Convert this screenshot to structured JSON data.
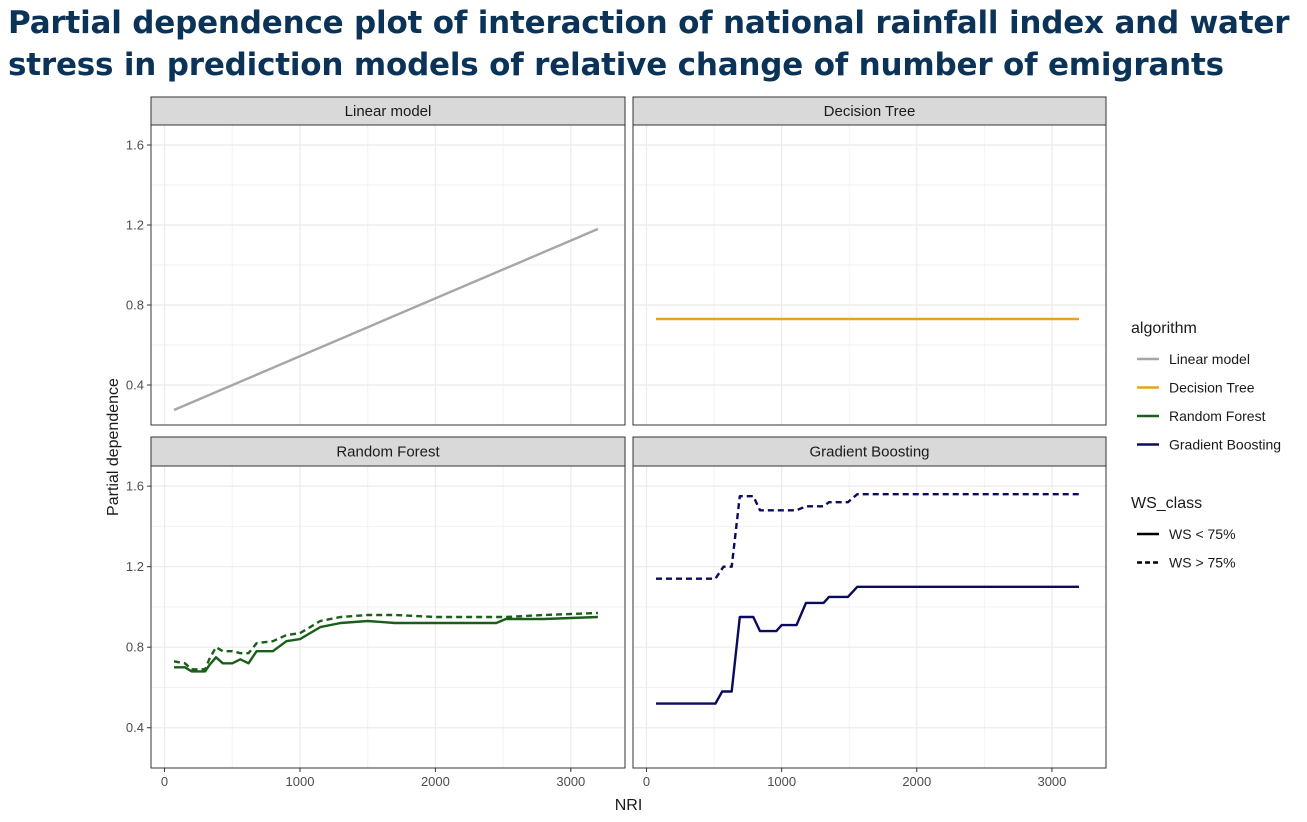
{
  "title": "Partial dependence plot of interaction of national rainfall index and water stress in prediction models of relative change of number of emigrants",
  "chart_data": {
    "type": "line",
    "xlabel": "NRI",
    "ylabel": "Partial dependence",
    "xlim": [
      -100,
      3400
    ],
    "ylim": [
      0.2,
      1.7
    ],
    "x_ticks": [
      0,
      1000,
      2000,
      3000
    ],
    "x_tick_labels": [
      "0",
      "1000",
      "2000",
      "3000"
    ],
    "y_ticks": [
      0.4,
      0.8,
      1.2,
      1.6
    ],
    "y_tick_labels": [
      "0.4",
      "0.8",
      "1.2",
      "1.6"
    ],
    "grid": true,
    "legend_placement": "right",
    "legends": [
      {
        "title": "algorithm",
        "entries": [
          {
            "label": "Linear model",
            "color": "#a6a6a6",
            "dash": "solid"
          },
          {
            "label": "Decision Tree",
            "color": "#e8a318",
            "dash": "solid"
          },
          {
            "label": "Random Forest",
            "color": "#1a5e1a",
            "dash": "solid"
          },
          {
            "label": "Gradient Boosting",
            "color": "#0b0b5e",
            "dash": "solid"
          }
        ]
      },
      {
        "title": "WS_class",
        "entries": [
          {
            "label": "WS < 75%",
            "color": "#000000",
            "dash": "solid"
          },
          {
            "label": "WS > 75%",
            "color": "#000000",
            "dash": "dashed"
          }
        ]
      }
    ],
    "panels": [
      {
        "name": "Linear model",
        "color": "#a6a6a6",
        "series": [
          {
            "ws_class": "WS < 75%",
            "dash": "solid",
            "x": [
              70,
              3200
            ],
            "y": [
              0.275,
              1.18
            ]
          }
        ]
      },
      {
        "name": "Decision Tree",
        "color": "#e8a318",
        "series": [
          {
            "ws_class": "WS < 75%",
            "dash": "solid",
            "x": [
              70,
              3200
            ],
            "y": [
              0.73,
              0.73
            ]
          }
        ]
      },
      {
        "name": "Random Forest",
        "color": "#1a5e1a",
        "series": [
          {
            "ws_class": "WS < 75%",
            "dash": "solid",
            "x": [
              70,
              150,
              200,
              300,
              330,
              380,
              430,
              500,
              560,
              620,
              680,
              800,
              900,
              1000,
              1150,
              1300,
              1500,
              1700,
              2000,
              2300,
              2450,
              2520,
              2800,
              3200
            ],
            "y": [
              0.7,
              0.7,
              0.68,
              0.68,
              0.71,
              0.75,
              0.72,
              0.72,
              0.74,
              0.72,
              0.78,
              0.78,
              0.83,
              0.84,
              0.9,
              0.92,
              0.93,
              0.92,
              0.92,
              0.92,
              0.92,
              0.94,
              0.94,
              0.95
            ]
          },
          {
            "ws_class": "WS > 75%",
            "dash": "dashed",
            "x": [
              70,
              150,
              200,
              300,
              330,
              380,
              430,
              500,
              560,
              620,
              680,
              800,
              900,
              1000,
              1150,
              1300,
              1500,
              1700,
              2000,
              2300,
              2450,
              2520,
              2800,
              3200
            ],
            "y": [
              0.73,
              0.72,
              0.69,
              0.69,
              0.74,
              0.8,
              0.78,
              0.78,
              0.77,
              0.77,
              0.82,
              0.83,
              0.86,
              0.87,
              0.93,
              0.95,
              0.96,
              0.96,
              0.95,
              0.95,
              0.95,
              0.95,
              0.96,
              0.97
            ]
          }
        ]
      },
      {
        "name": "Gradient Boosting",
        "color": "#0b0b5e",
        "series": [
          {
            "ws_class": "WS < 75%",
            "dash": "solid",
            "x": [
              70,
              510,
              560,
              630,
              690,
              790,
              840,
              960,
              1000,
              1110,
              1180,
              1310,
              1350,
              1490,
              1560,
              3200
            ],
            "y": [
              0.52,
              0.52,
              0.58,
              0.58,
              0.95,
              0.95,
              0.88,
              0.88,
              0.91,
              0.91,
              1.02,
              1.02,
              1.05,
              1.05,
              1.1,
              1.1
            ]
          },
          {
            "ws_class": "WS > 75%",
            "dash": "dashed",
            "x": [
              70,
              510,
              570,
              630,
              690,
              790,
              840,
              960,
              1000,
              1110,
              1180,
              1310,
              1350,
              1490,
              1560,
              3200
            ],
            "y": [
              1.14,
              1.14,
              1.2,
              1.2,
              1.55,
              1.55,
              1.48,
              1.48,
              1.48,
              1.48,
              1.5,
              1.5,
              1.52,
              1.52,
              1.56,
              1.56
            ]
          }
        ]
      }
    ]
  }
}
